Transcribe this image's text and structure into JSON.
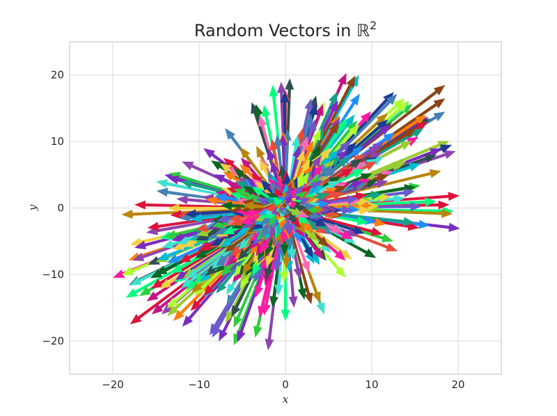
{
  "chart_data": {
    "type": "quiver",
    "title": "Random Vectors in ℝ",
    "title_superscript": "2",
    "xlabel": "x",
    "ylabel": "y",
    "xlim": [
      -25,
      25
    ],
    "ylim": [
      -25,
      25
    ],
    "xticks": [
      -20,
      -10,
      0,
      10,
      20
    ],
    "yticks": [
      -20,
      -10,
      0,
      10,
      20
    ],
    "xtick_labels": [
      "−20",
      "−10",
      "0",
      "10",
      "20"
    ],
    "ytick_labels": [
      "−20",
      "−10",
      "0",
      "10",
      "20"
    ],
    "grid": true,
    "legend": "none",
    "origin": [
      0,
      0
    ],
    "distribution": "bivariate normal, positively correlated (elongated along y ≈ 0.6x)",
    "vector_count_approx": 500,
    "representative_vectors": [
      [
        19.5,
        -0.5
      ],
      [
        18.5,
        18.5
      ],
      [
        18.5,
        14.5
      ],
      [
        16.5,
        13.0
      ],
      [
        18.5,
        16.5
      ],
      [
        16.0,
        12.0
      ],
      [
        17.5,
        8.0
      ],
      [
        17.5,
        1.0
      ],
      [
        19.0,
        0.5
      ],
      [
        15.0,
        2.5
      ],
      [
        13.0,
        -6.5
      ],
      [
        12.5,
        -5.0
      ],
      [
        15.5,
        -3.0
      ],
      [
        8.5,
        20.0
      ],
      [
        6.0,
        17.5
      ],
      [
        4.5,
        16.0
      ],
      [
        3.0,
        16.5
      ],
      [
        0.5,
        19.5
      ],
      [
        -0.5,
        19.0
      ],
      [
        -1.5,
        18.5
      ],
      [
        -2.5,
        15.5
      ],
      [
        -3.0,
        14.0
      ],
      [
        -7.0,
        12.0
      ],
      [
        -9.5,
        9.0
      ],
      [
        -12.0,
        7.0
      ],
      [
        -14.0,
        5.0
      ],
      [
        -15.0,
        4.0
      ],
      [
        -17.5,
        0.5
      ],
      [
        -19.0,
        -1.0
      ],
      [
        -18.0,
        -5.5
      ],
      [
        -16.0,
        -3.0
      ],
      [
        -17.5,
        -6.0
      ],
      [
        -20.0,
        -10.5
      ],
      [
        -18.5,
        -13.5
      ],
      [
        -18.0,
        -17.5
      ],
      [
        -15.5,
        -16.0
      ],
      [
        -13.0,
        -17.0
      ],
      [
        -11.0,
        -15.5
      ],
      [
        -8.5,
        -19.5
      ],
      [
        -6.0,
        -18.0
      ],
      [
        -3.5,
        -19.5
      ],
      [
        -3.0,
        -16.5
      ],
      [
        -1.5,
        -15.0
      ],
      [
        0.0,
        -17.0
      ],
      [
        1.0,
        -15.0
      ],
      [
        3.0,
        -14.5
      ],
      [
        4.5,
        -16.0
      ],
      [
        7.0,
        -10.5
      ],
      [
        10.5,
        -7.5
      ],
      [
        11.0,
        9.5
      ],
      [
        12.0,
        5.0
      ],
      [
        9.0,
        4.0
      ],
      [
        6.0,
        3.0
      ],
      [
        2.0,
        12.0
      ],
      [
        -2.0,
        9.0
      ],
      [
        -6.0,
        6.0
      ],
      [
        -9.0,
        -3.0
      ],
      [
        -5.0,
        -10.0
      ],
      [
        5.0,
        -6.0
      ],
      [
        14.0,
        7.0
      ]
    ],
    "colors": [
      "#1f3a93",
      "#2ecc40",
      "#ff1aa3",
      "#7b2cbf",
      "#00bcd4",
      "#f4d03f",
      "#e74c3c",
      "#16a085",
      "#8e44ad",
      "#0b6623",
      "#ff7f0e",
      "#9acd32",
      "#4682b4",
      "#c71585",
      "#40e0d0",
      "#8b4513",
      "#adff2f",
      "#1e90ff",
      "#ff69b4",
      "#2f4f4f",
      "#b8860b",
      "#6a5acd",
      "#00ff7f",
      "#dc143c"
    ]
  }
}
